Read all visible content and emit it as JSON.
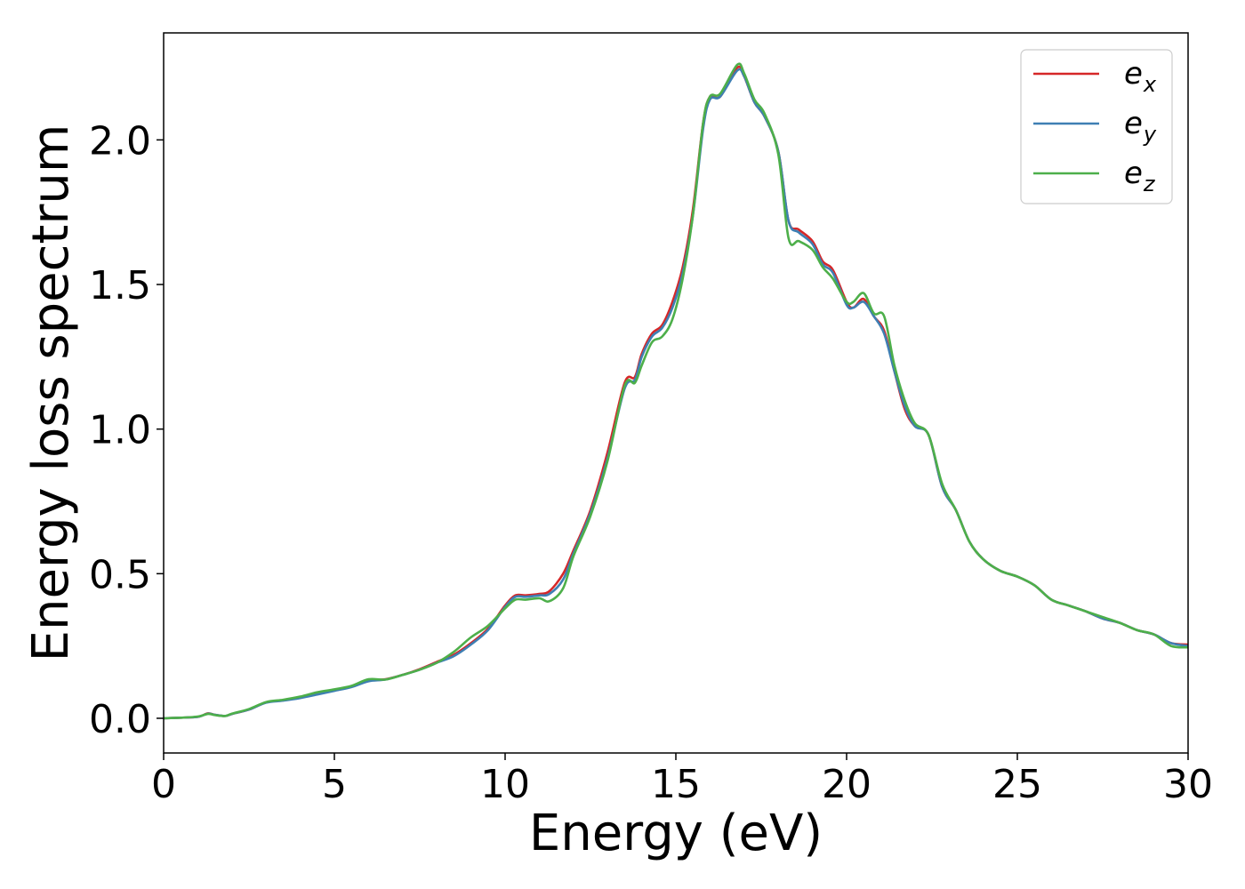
{
  "chart_data": {
    "type": "line",
    "title": "",
    "xlabel": "Energy (eV)",
    "ylabel": "Energy loss spectrum",
    "xlim": [
      0,
      30
    ],
    "ylim": [
      -0.12,
      2.37
    ],
    "xticks": [
      0,
      5,
      10,
      15,
      20,
      25,
      30
    ],
    "xtick_labels": [
      "0",
      "5",
      "10",
      "15",
      "20",
      "25",
      "30"
    ],
    "yticks": [
      0.0,
      0.5,
      1.0,
      1.5,
      2.0
    ],
    "ytick_labels": [
      "0.0",
      "0.5",
      "1.0",
      "1.5",
      "2.0"
    ],
    "grid": false,
    "legend_position": "top-right",
    "x": [
      0,
      0.5,
      1.0,
      1.3,
      1.5,
      1.8,
      2.0,
      2.5,
      3.0,
      3.5,
      4.0,
      4.5,
      5.0,
      5.5,
      6.0,
      6.5,
      7.0,
      7.5,
      8.0,
      8.5,
      9.0,
      9.5,
      10.0,
      10.3,
      10.6,
      11.0,
      11.3,
      11.7,
      12.0,
      12.5,
      13.0,
      13.5,
      13.8,
      14.0,
      14.3,
      14.6,
      14.9,
      15.2,
      15.5,
      15.8,
      16.0,
      16.3,
      16.8,
      17.0,
      17.3,
      17.6,
      18.0,
      18.3,
      18.6,
      19.0,
      19.3,
      19.6,
      20.0,
      20.2,
      20.5,
      20.8,
      21.1,
      21.4,
      21.7,
      22.0,
      22.4,
      22.8,
      23.2,
      23.6,
      24.0,
      24.5,
      25.0,
      25.5,
      26.0,
      26.5,
      27.0,
      27.5,
      28.0,
      28.5,
      29.0,
      29.5,
      30.0
    ],
    "series": [
      {
        "name": "e",
        "subscript": "x",
        "color": "#d62728",
        "values": [
          0.0,
          0.002,
          0.005,
          0.017,
          0.012,
          0.008,
          0.015,
          0.03,
          0.055,
          0.062,
          0.072,
          0.085,
          0.098,
          0.11,
          0.13,
          0.135,
          0.15,
          0.17,
          0.195,
          0.22,
          0.26,
          0.31,
          0.39,
          0.425,
          0.425,
          0.43,
          0.44,
          0.5,
          0.58,
          0.72,
          0.92,
          1.16,
          1.18,
          1.26,
          1.33,
          1.36,
          1.44,
          1.56,
          1.76,
          2.06,
          2.15,
          2.15,
          2.25,
          2.22,
          2.13,
          2.08,
          1.96,
          1.72,
          1.69,
          1.65,
          1.58,
          1.55,
          1.44,
          1.42,
          1.45,
          1.39,
          1.34,
          1.2,
          1.07,
          1.01,
          0.98,
          0.8,
          0.72,
          0.61,
          0.55,
          0.51,
          0.49,
          0.46,
          0.41,
          0.39,
          0.37,
          0.345,
          0.33,
          0.305,
          0.29,
          0.26,
          0.255
        ]
      },
      {
        "name": "e",
        "subscript": "y",
        "color": "#3e7fb3",
        "values": [
          0.0,
          0.002,
          0.005,
          0.016,
          0.012,
          0.008,
          0.015,
          0.03,
          0.054,
          0.061,
          0.07,
          0.082,
          0.095,
          0.108,
          0.128,
          0.134,
          0.15,
          0.168,
          0.192,
          0.215,
          0.255,
          0.305,
          0.385,
          0.42,
          0.42,
          0.425,
          0.43,
          0.48,
          0.57,
          0.71,
          0.9,
          1.14,
          1.17,
          1.25,
          1.32,
          1.35,
          1.42,
          1.54,
          1.74,
          2.04,
          2.14,
          2.15,
          2.24,
          2.22,
          2.13,
          2.08,
          1.96,
          1.72,
          1.68,
          1.64,
          1.57,
          1.54,
          1.43,
          1.42,
          1.44,
          1.39,
          1.33,
          1.2,
          1.08,
          1.01,
          0.98,
          0.8,
          0.72,
          0.61,
          0.55,
          0.51,
          0.49,
          0.46,
          0.41,
          0.39,
          0.37,
          0.345,
          0.33,
          0.305,
          0.29,
          0.26,
          0.25
        ]
      },
      {
        "name": "e",
        "subscript": "z",
        "color": "#4daf4a",
        "values": [
          0.0,
          0.002,
          0.006,
          0.015,
          0.011,
          0.008,
          0.016,
          0.032,
          0.056,
          0.064,
          0.075,
          0.09,
          0.1,
          0.112,
          0.135,
          0.134,
          0.15,
          0.168,
          0.192,
          0.23,
          0.28,
          0.32,
          0.38,
          0.41,
          0.41,
          0.415,
          0.405,
          0.45,
          0.56,
          0.7,
          0.89,
          1.15,
          1.16,
          1.22,
          1.3,
          1.32,
          1.38,
          1.52,
          1.74,
          2.06,
          2.15,
          2.16,
          2.26,
          2.23,
          2.14,
          2.09,
          1.95,
          1.66,
          1.65,
          1.62,
          1.56,
          1.52,
          1.44,
          1.44,
          1.47,
          1.4,
          1.39,
          1.22,
          1.1,
          1.02,
          0.98,
          0.81,
          0.72,
          0.61,
          0.55,
          0.51,
          0.49,
          0.46,
          0.41,
          0.39,
          0.37,
          0.35,
          0.33,
          0.305,
          0.29,
          0.25,
          0.245
        ]
      }
    ]
  }
}
